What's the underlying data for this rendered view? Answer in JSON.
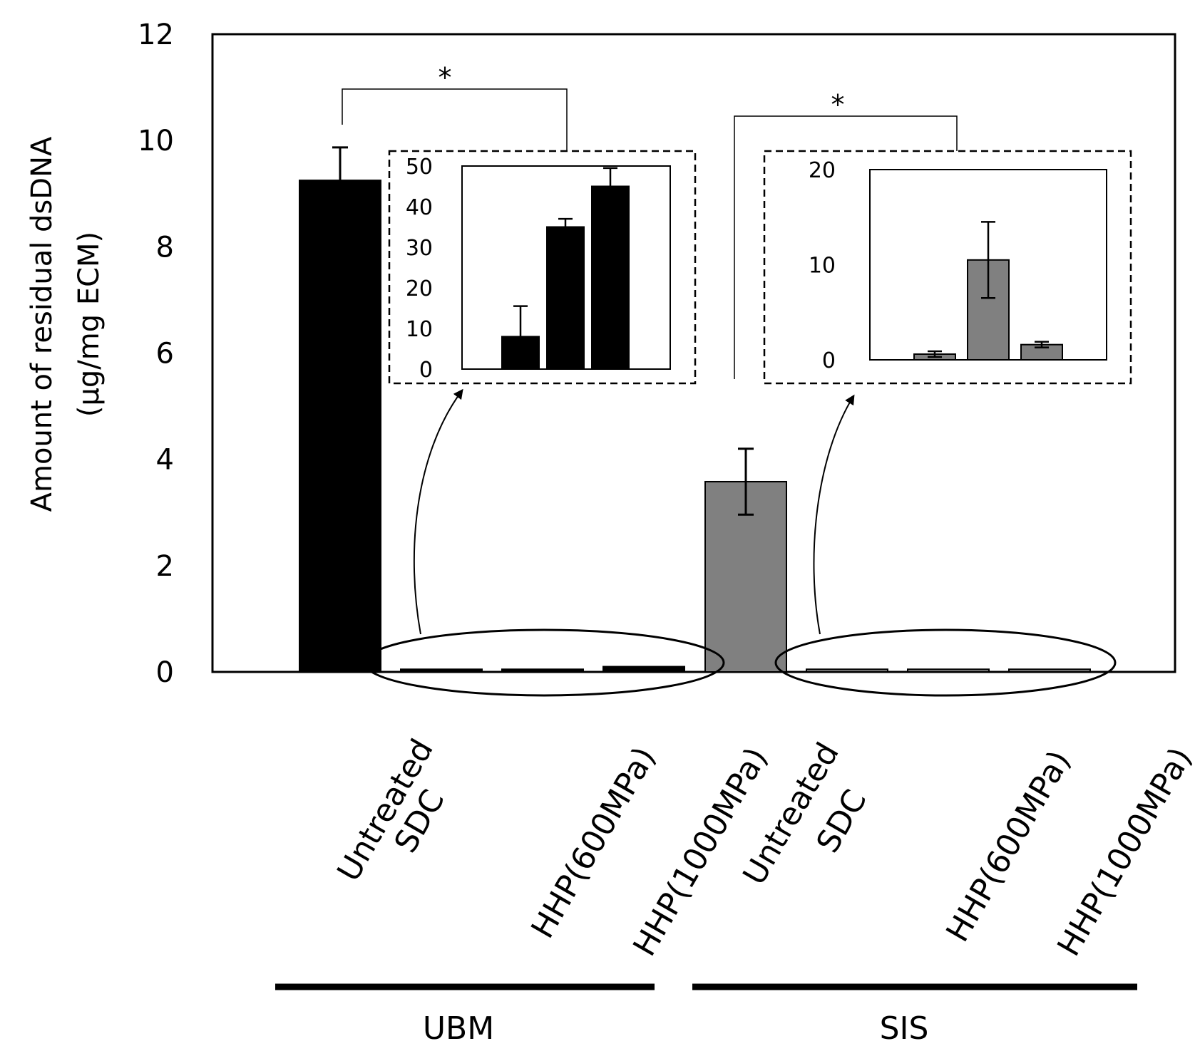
{
  "chart_data": {
    "type": "bar",
    "y_label_line1": "Amount of residual dsDNA",
    "y_label_line2": "(µg/mg ECM)",
    "ylim": [
      0,
      12
    ],
    "y_ticks": [
      "0",
      "2",
      "4",
      "6",
      "8",
      "10",
      "12"
    ],
    "categories": [
      "Untreated",
      "SDC",
      "HHP(600MPa)",
      "HHP(1000MPa)",
      "Untreated",
      "SDC",
      "HHP(600MPa)",
      "HHP(1000MPa)"
    ],
    "groups": [
      {
        "name": "UBM",
        "color": "#000000",
        "categories": [
          "Untreated",
          "SDC",
          "HHP(600MPa)",
          "HHP(1000MPa)"
        ],
        "values": [
          9.25,
          0.05,
          0.05,
          0.1
        ],
        "errors": [
          0.62,
          0,
          0,
          0
        ]
      },
      {
        "name": "SIS",
        "color": "#808080",
        "categories": [
          "Untreated",
          "SDC",
          "HHP(600MPa)",
          "HHP(1000MPa)"
        ],
        "values": [
          3.58,
          0.05,
          0.05,
          0.05
        ],
        "errors": [
          0.62,
          0,
          0,
          0
        ]
      }
    ],
    "significance": [
      "*",
      "*"
    ],
    "insets": [
      {
        "group": "UBM",
        "ylim": [
          0,
          50
        ],
        "y_ticks": [
          "0",
          "10",
          "20",
          "30",
          "40",
          "50"
        ],
        "categories": [
          "SDC",
          "HHP(600MPa)",
          "HHP(1000MPa)"
        ],
        "values": [
          8,
          35,
          45
        ],
        "errors": [
          7.5,
          2,
          4.5
        ],
        "color": "#000000"
      },
      {
        "group": "SIS",
        "ylim": [
          0,
          20
        ],
        "y_ticks": [
          "0",
          "10",
          "20"
        ],
        "categories": [
          "SDC",
          "HHP(600MPa)",
          "HHP(1000MPa)"
        ],
        "values": [
          0.6,
          10.5,
          1.6
        ],
        "errors": [
          0.3,
          4,
          0.3
        ],
        "color": "#808080"
      }
    ]
  }
}
